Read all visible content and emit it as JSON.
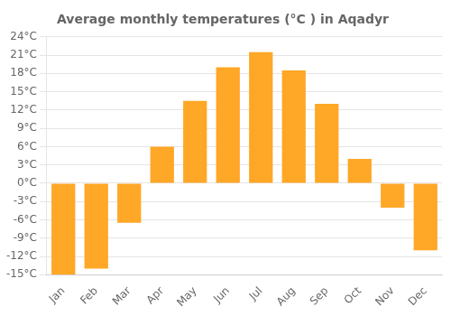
{
  "chart_data": {
    "type": "bar",
    "title": "Average monthly temperatures (°C ) in Aqadyr",
    "categories": [
      "Jan",
      "Feb",
      "Mar",
      "Apr",
      "May",
      "Jun",
      "Jul",
      "Aug",
      "Sep",
      "Oct",
      "Nov",
      "Dec"
    ],
    "values": [
      -15,
      -14,
      -6.5,
      6,
      13.5,
      19,
      21.5,
      18.5,
      13,
      4,
      -4,
      -11
    ],
    "color": "#FFA726",
    "ylim": [
      -15,
      24
    ],
    "yticks": [
      {
        "value": -15,
        "label": "-15°C"
      },
      {
        "value": -12,
        "label": "-12°C"
      },
      {
        "value": -9,
        "label": "-9°C"
      },
      {
        "value": -6,
        "label": "-6°C"
      },
      {
        "value": -3,
        "label": "-3°C"
      },
      {
        "value": 0,
        "label": "0°C"
      },
      {
        "value": 3,
        "label": "3°C"
      },
      {
        "value": 6,
        "label": "6°C"
      },
      {
        "value": 9,
        "label": "9°C"
      },
      {
        "value": 12,
        "label": "12°C"
      },
      {
        "value": 15,
        "label": "15°C"
      },
      {
        "value": 18,
        "label": "18°C"
      },
      {
        "value": 21,
        "label": "21°C"
      },
      {
        "value": 24,
        "label": "24°C"
      }
    ],
    "grid": true
  }
}
